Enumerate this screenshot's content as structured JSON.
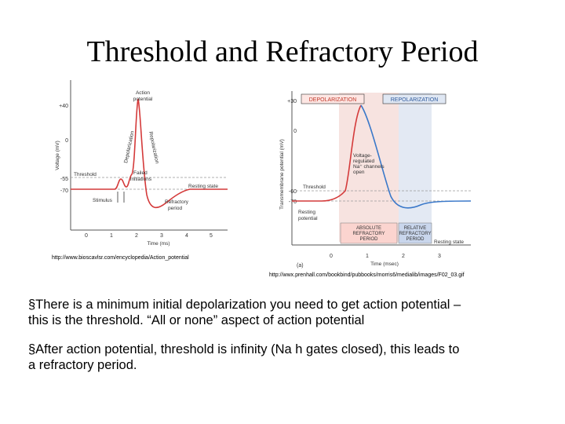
{
  "slide": {
    "title": "Threshold and Refractory Period",
    "left_figure": {
      "ylabel": "Voltage (mV)",
      "y_ticks": [
        "+40",
        "0",
        "-55",
        "-70"
      ],
      "x_ticks": [
        "0",
        "1",
        "2",
        "3",
        "4",
        "5"
      ],
      "xlabel": "Time (ms)",
      "labels": {
        "action_potential_1": "Action",
        "action_potential_2": "potential",
        "depolarization": "Depolarization",
        "repolarization": "Repolarization",
        "threshold": "Threshold",
        "failed_1": "Failed",
        "failed_2": "initiations",
        "resting_state": "Resting state",
        "stimulus": "Stimulus",
        "refractory_1": "Refractory",
        "refractory_2": "period"
      },
      "url": "http://www.bioscavlsr.com/encyclopedia/Action_potential"
    },
    "right_figure": {
      "ylabel": "Transmembrane potential (mV)",
      "y_ticks": [
        "+30",
        "0",
        "-60",
        "-70"
      ],
      "x_ticks": [
        "0",
        "1",
        "2",
        "3"
      ],
      "xlabel": "Time (msec)",
      "depolarization_box": "DEPOLARIZATION",
      "repolarization_box": "REPOLARIZATION",
      "gates_1": "Voltage-",
      "gates_2": "regulated",
      "gates_3": "Na⁺ channels",
      "gates_4": "open",
      "threshold": "Threshold",
      "resting_1": "Resting",
      "resting_2": "potential",
      "absolute_1": "ABSOLUTE",
      "absolute_2": "REFRACTORY",
      "absolute_3": "PERIOD",
      "relative_1": "RELATIVE",
      "relative_2": "REFRACTORY",
      "relative_3": "PERIOD",
      "resting_state": "Resting state",
      "panel_label": "(a)",
      "url": "http://wwx.prenhall.com/bookbind/pubbooks/morris6/medialib/images/F02_03.gif"
    },
    "bullets": [
      "§There is a minimum initial depolarization you need to get action potential – this is the threshold.  “All or none” aspect of action potential",
      "§After action potential, threshold is infinity (Na h gates closed), this leads to a refractory period."
    ]
  }
}
